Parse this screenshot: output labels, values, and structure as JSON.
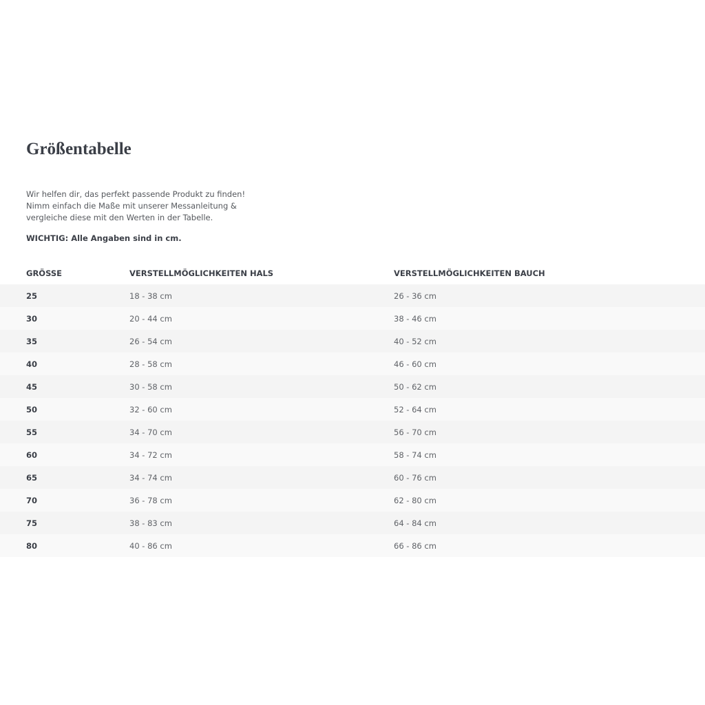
{
  "title": "Größentabelle",
  "intro": [
    "Wir helfen dir, das perfekt passende Produkt zu finden!",
    "Nimm einfach die Maße mit unserer Messanleitung &",
    "vergleiche diese mit den Werten in der Tabelle."
  ],
  "important": "WICHTIG: Alle Angaben sind in cm.",
  "table": {
    "headers": [
      "GRÖSSE",
      "VERSTELLMÖGLICHKEITEN HALS",
      "VERSTELLMÖGLICHKEITEN BAUCH"
    ],
    "rows": [
      [
        "25",
        "18 - 38 cm",
        "26 - 36 cm"
      ],
      [
        "30",
        "20 - 44 cm",
        "38 - 46 cm"
      ],
      [
        "35",
        "26 - 54 cm",
        "40 - 52 cm"
      ],
      [
        "40",
        "28 - 58 cm",
        "46 - 60 cm"
      ],
      [
        "45",
        "30 - 58 cm",
        "50 - 62 cm"
      ],
      [
        "50",
        "32 - 60 cm",
        "52 - 64 cm"
      ],
      [
        "55",
        "34 - 70 cm",
        "56 - 70 cm"
      ],
      [
        "60",
        "34 - 72 cm",
        "58 - 74 cm"
      ],
      [
        "65",
        "34 - 74 cm",
        "60 - 76 cm"
      ],
      [
        "70",
        "36 - 78 cm",
        "62 - 80 cm"
      ],
      [
        "75",
        "38 - 83 cm",
        "64 - 84 cm"
      ],
      [
        "80",
        "40 - 86 cm",
        "66 - 86 cm"
      ]
    ]
  }
}
